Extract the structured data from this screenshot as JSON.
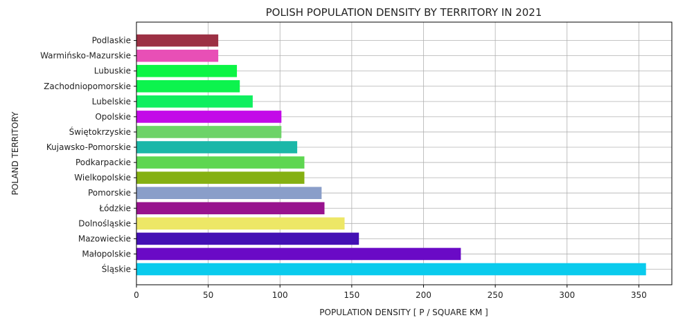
{
  "chart_data": {
    "type": "bar",
    "orientation": "horizontal",
    "title": "POLISH POPULATION DENSITY BY TERRITORY IN 2021",
    "xlabel": "POPULATION DENSITY [ P / SQUARE KM ]",
    "ylabel": "POLAND TERRITORY",
    "xlim": [
      0,
      373
    ],
    "xticks": [
      0,
      50,
      100,
      150,
      200,
      250,
      300,
      350
    ],
    "grid": true,
    "categories": [
      "Śląskie",
      "Małopolskie",
      "Mazowieckie",
      "Dolnośląskie",
      "Łódzkie",
      "Pomorskie",
      "Wielkopolskie",
      "Podkarpackie",
      "Kujawsko-Pomorskie",
      "Świętokrzyskie",
      "Opolskie",
      "Lubelskie",
      "Zachodniopomorskie",
      "Lubuskie",
      "Warmińsko-Mazurskie",
      "Podlaskie"
    ],
    "values": [
      355,
      226,
      155,
      145,
      131,
      129,
      117,
      117,
      112,
      101,
      101,
      81,
      72,
      70,
      57,
      57
    ],
    "colors": [
      "#0acbed",
      "#6a0ac6",
      "#4310b4",
      "#ede766",
      "#98138e",
      "#8a9ec9",
      "#85b012",
      "#5ed651",
      "#1bb7a8",
      "#6dd368",
      "#c30ae8",
      "#0fef5f",
      "#0cf34d",
      "#0cf545",
      "#e84fb6",
      "#9c3044"
    ]
  }
}
